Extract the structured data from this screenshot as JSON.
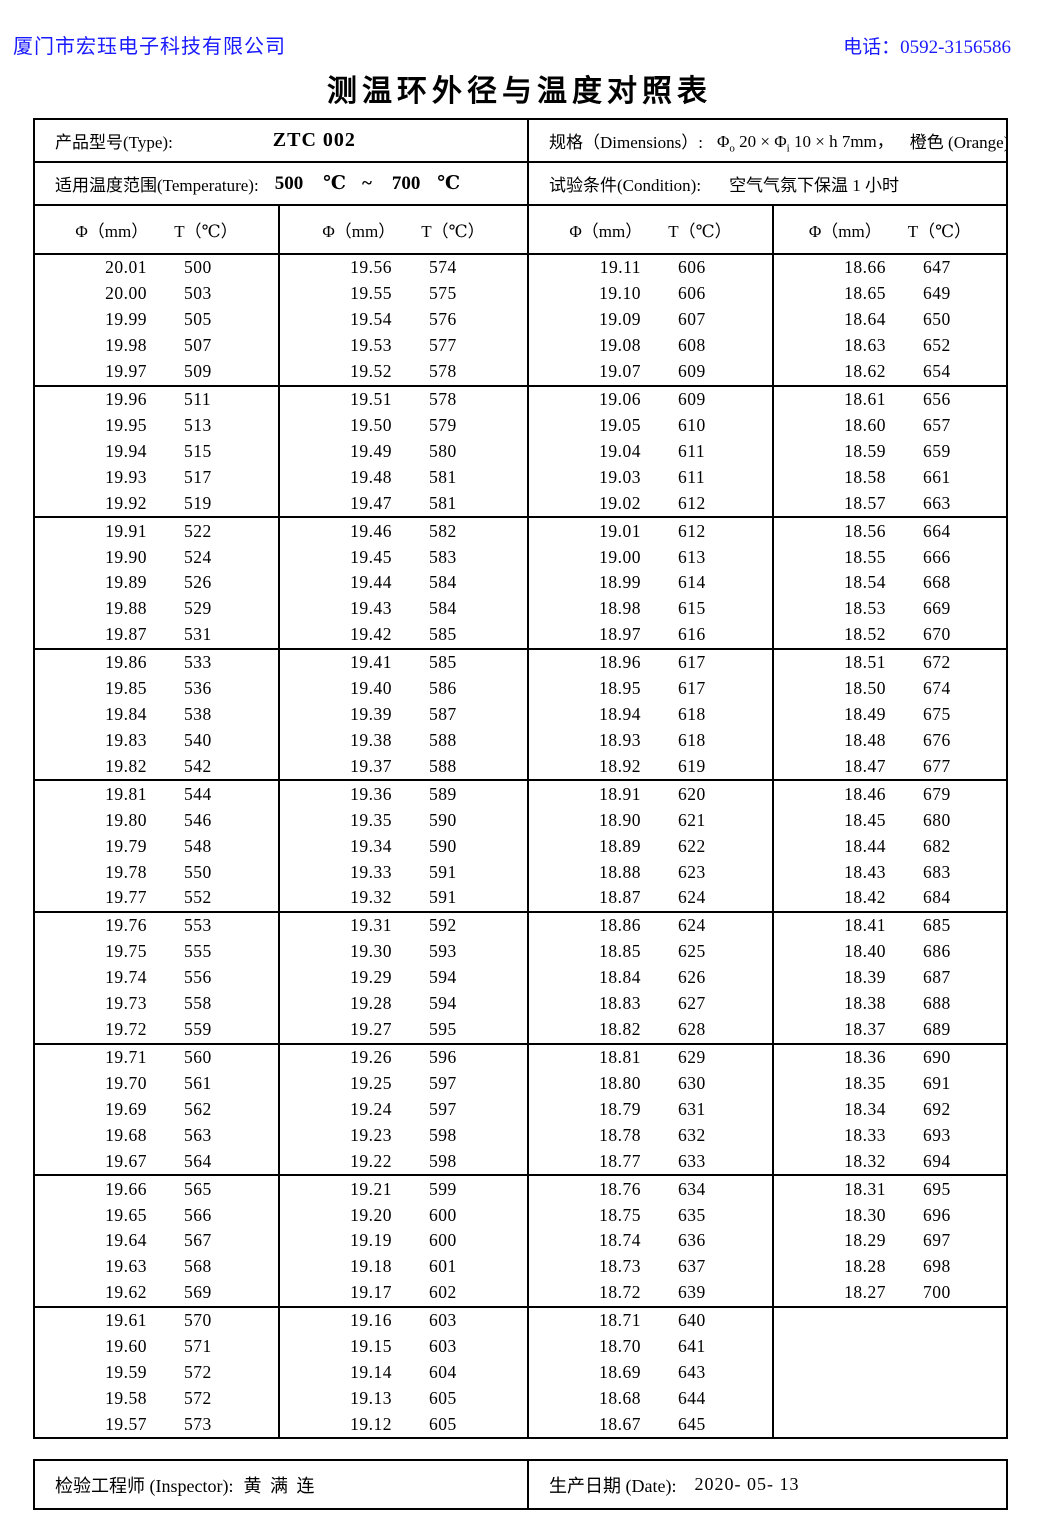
{
  "page": {
    "company": "厦门市宏珏电子科技有限公司",
    "phone": "电话：0592-3156586",
    "title": "测温环外径与温度对照表"
  },
  "info": {
    "type_label": "产品型号(Type):",
    "type_value": "ZTC 002",
    "dimensions_label": "规格（Dimensions）:",
    "dimensions": {
      "phi_outer_symbol": "Φ",
      "phi_outer_sub": "o",
      "outer_value": " 20 ×",
      "phi_inner_symbol": " Φ",
      "phi_inner_sub": "i",
      "inner_value": " 10 × h 7mm，",
      "color_value": "橙色 (Orange)"
    },
    "temperature_label": "适用温度范围(Temperature):",
    "temperature": {
      "min": "500",
      "min_unit": "℃",
      "tilde": "~",
      "max": "700",
      "max_unit": "℃"
    },
    "condition_label": "试验条件(Condition):",
    "condition_value": "空气气氛下保温 1 小时"
  },
  "table": {
    "phi_header": "Φ（mm）",
    "t_header": "T（℃）",
    "rows_per_block": 5,
    "blocks_per_column": 9,
    "columns": [
      {
        "rows": [
          [
            "20.01",
            "500"
          ],
          [
            "20.00",
            "503"
          ],
          [
            "19.99",
            "505"
          ],
          [
            "19.98",
            "507"
          ],
          [
            "19.97",
            "509"
          ],
          [
            "19.96",
            "511"
          ],
          [
            "19.95",
            "513"
          ],
          [
            "19.94",
            "515"
          ],
          [
            "19.93",
            "517"
          ],
          [
            "19.92",
            "519"
          ],
          [
            "19.91",
            "522"
          ],
          [
            "19.90",
            "524"
          ],
          [
            "19.89",
            "526"
          ],
          [
            "19.88",
            "529"
          ],
          [
            "19.87",
            "531"
          ],
          [
            "19.86",
            "533"
          ],
          [
            "19.85",
            "536"
          ],
          [
            "19.84",
            "538"
          ],
          [
            "19.83",
            "540"
          ],
          [
            "19.82",
            "542"
          ],
          [
            "19.81",
            "544"
          ],
          [
            "19.80",
            "546"
          ],
          [
            "19.79",
            "548"
          ],
          [
            "19.78",
            "550"
          ],
          [
            "19.77",
            "552"
          ],
          [
            "19.76",
            "553"
          ],
          [
            "19.75",
            "555"
          ],
          [
            "19.74",
            "556"
          ],
          [
            "19.73",
            "558"
          ],
          [
            "19.72",
            "559"
          ],
          [
            "19.71",
            "560"
          ],
          [
            "19.70",
            "561"
          ],
          [
            "19.69",
            "562"
          ],
          [
            "19.68",
            "563"
          ],
          [
            "19.67",
            "564"
          ],
          [
            "19.66",
            "565"
          ],
          [
            "19.65",
            "566"
          ],
          [
            "19.64",
            "567"
          ],
          [
            "19.63",
            "568"
          ],
          [
            "19.62",
            "569"
          ],
          [
            "19.61",
            "570"
          ],
          [
            "19.60",
            "571"
          ],
          [
            "19.59",
            "572"
          ],
          [
            "19.58",
            "572"
          ],
          [
            "19.57",
            "573"
          ]
        ]
      },
      {
        "rows": [
          [
            "19.56",
            "574"
          ],
          [
            "19.55",
            "575"
          ],
          [
            "19.54",
            "576"
          ],
          [
            "19.53",
            "577"
          ],
          [
            "19.52",
            "578"
          ],
          [
            "19.51",
            "578"
          ],
          [
            "19.50",
            "579"
          ],
          [
            "19.49",
            "580"
          ],
          [
            "19.48",
            "581"
          ],
          [
            "19.47",
            "581"
          ],
          [
            "19.46",
            "582"
          ],
          [
            "19.45",
            "583"
          ],
          [
            "19.44",
            "584"
          ],
          [
            "19.43",
            "584"
          ],
          [
            "19.42",
            "585"
          ],
          [
            "19.41",
            "585"
          ],
          [
            "19.40",
            "586"
          ],
          [
            "19.39",
            "587"
          ],
          [
            "19.38",
            "588"
          ],
          [
            "19.37",
            "588"
          ],
          [
            "19.36",
            "589"
          ],
          [
            "19.35",
            "590"
          ],
          [
            "19.34",
            "590"
          ],
          [
            "19.33",
            "591"
          ],
          [
            "19.32",
            "591"
          ],
          [
            "19.31",
            "592"
          ],
          [
            "19.30",
            "593"
          ],
          [
            "19.29",
            "594"
          ],
          [
            "19.28",
            "594"
          ],
          [
            "19.27",
            "595"
          ],
          [
            "19.26",
            "596"
          ],
          [
            "19.25",
            "597"
          ],
          [
            "19.24",
            "597"
          ],
          [
            "19.23",
            "598"
          ],
          [
            "19.22",
            "598"
          ],
          [
            "19.21",
            "599"
          ],
          [
            "19.20",
            "600"
          ],
          [
            "19.19",
            "600"
          ],
          [
            "19.18",
            "601"
          ],
          [
            "19.17",
            "602"
          ],
          [
            "19.16",
            "603"
          ],
          [
            "19.15",
            "603"
          ],
          [
            "19.14",
            "604"
          ],
          [
            "19.13",
            "605"
          ],
          [
            "19.12",
            "605"
          ]
        ]
      },
      {
        "rows": [
          [
            "19.11",
            "606"
          ],
          [
            "19.10",
            "606"
          ],
          [
            "19.09",
            "607"
          ],
          [
            "19.08",
            "608"
          ],
          [
            "19.07",
            "609"
          ],
          [
            "19.06",
            "609"
          ],
          [
            "19.05",
            "610"
          ],
          [
            "19.04",
            "611"
          ],
          [
            "19.03",
            "611"
          ],
          [
            "19.02",
            "612"
          ],
          [
            "19.01",
            "612"
          ],
          [
            "19.00",
            "613"
          ],
          [
            "18.99",
            "614"
          ],
          [
            "18.98",
            "615"
          ],
          [
            "18.97",
            "616"
          ],
          [
            "18.96",
            "617"
          ],
          [
            "18.95",
            "617"
          ],
          [
            "18.94",
            "618"
          ],
          [
            "18.93",
            "618"
          ],
          [
            "18.92",
            "619"
          ],
          [
            "18.91",
            "620"
          ],
          [
            "18.90",
            "621"
          ],
          [
            "18.89",
            "622"
          ],
          [
            "18.88",
            "623"
          ],
          [
            "18.87",
            "624"
          ],
          [
            "18.86",
            "624"
          ],
          [
            "18.85",
            "625"
          ],
          [
            "18.84",
            "626"
          ],
          [
            "18.83",
            "627"
          ],
          [
            "18.82",
            "628"
          ],
          [
            "18.81",
            "629"
          ],
          [
            "18.80",
            "630"
          ],
          [
            "18.79",
            "631"
          ],
          [
            "18.78",
            "632"
          ],
          [
            "18.77",
            "633"
          ],
          [
            "18.76",
            "634"
          ],
          [
            "18.75",
            "635"
          ],
          [
            "18.74",
            "636"
          ],
          [
            "18.73",
            "637"
          ],
          [
            "18.72",
            "639"
          ],
          [
            "18.71",
            "640"
          ],
          [
            "18.70",
            "641"
          ],
          [
            "18.69",
            "643"
          ],
          [
            "18.68",
            "644"
          ],
          [
            "18.67",
            "645"
          ]
        ]
      },
      {
        "rows": [
          [
            "18.66",
            "647"
          ],
          [
            "18.65",
            "649"
          ],
          [
            "18.64",
            "650"
          ],
          [
            "18.63",
            "652"
          ],
          [
            "18.62",
            "654"
          ],
          [
            "18.61",
            "656"
          ],
          [
            "18.60",
            "657"
          ],
          [
            "18.59",
            "659"
          ],
          [
            "18.58",
            "661"
          ],
          [
            "18.57",
            "663"
          ],
          [
            "18.56",
            "664"
          ],
          [
            "18.55",
            "666"
          ],
          [
            "18.54",
            "668"
          ],
          [
            "18.53",
            "669"
          ],
          [
            "18.52",
            "670"
          ],
          [
            "18.51",
            "672"
          ],
          [
            "18.50",
            "674"
          ],
          [
            "18.49",
            "675"
          ],
          [
            "18.48",
            "676"
          ],
          [
            "18.47",
            "677"
          ],
          [
            "18.46",
            "679"
          ],
          [
            "18.45",
            "680"
          ],
          [
            "18.44",
            "682"
          ],
          [
            "18.43",
            "683"
          ],
          [
            "18.42",
            "684"
          ],
          [
            "18.41",
            "685"
          ],
          [
            "18.40",
            "686"
          ],
          [
            "18.39",
            "687"
          ],
          [
            "18.38",
            "688"
          ],
          [
            "18.37",
            "689"
          ],
          [
            "18.36",
            "690"
          ],
          [
            "18.35",
            "691"
          ],
          [
            "18.34",
            "692"
          ],
          [
            "18.33",
            "693"
          ],
          [
            "18.32",
            "694"
          ],
          [
            "18.31",
            "695"
          ],
          [
            "18.30",
            "696"
          ],
          [
            "18.29",
            "697"
          ],
          [
            "18.28",
            "698"
          ],
          [
            "18.27",
            "700"
          ]
        ]
      }
    ]
  },
  "footer": {
    "inspector_label": "检验工程师 (Inspector):",
    "inspector_value": "黄 满 连",
    "date_label": "生产日期 (Date):",
    "date_value": "2020- 05- 13"
  }
}
